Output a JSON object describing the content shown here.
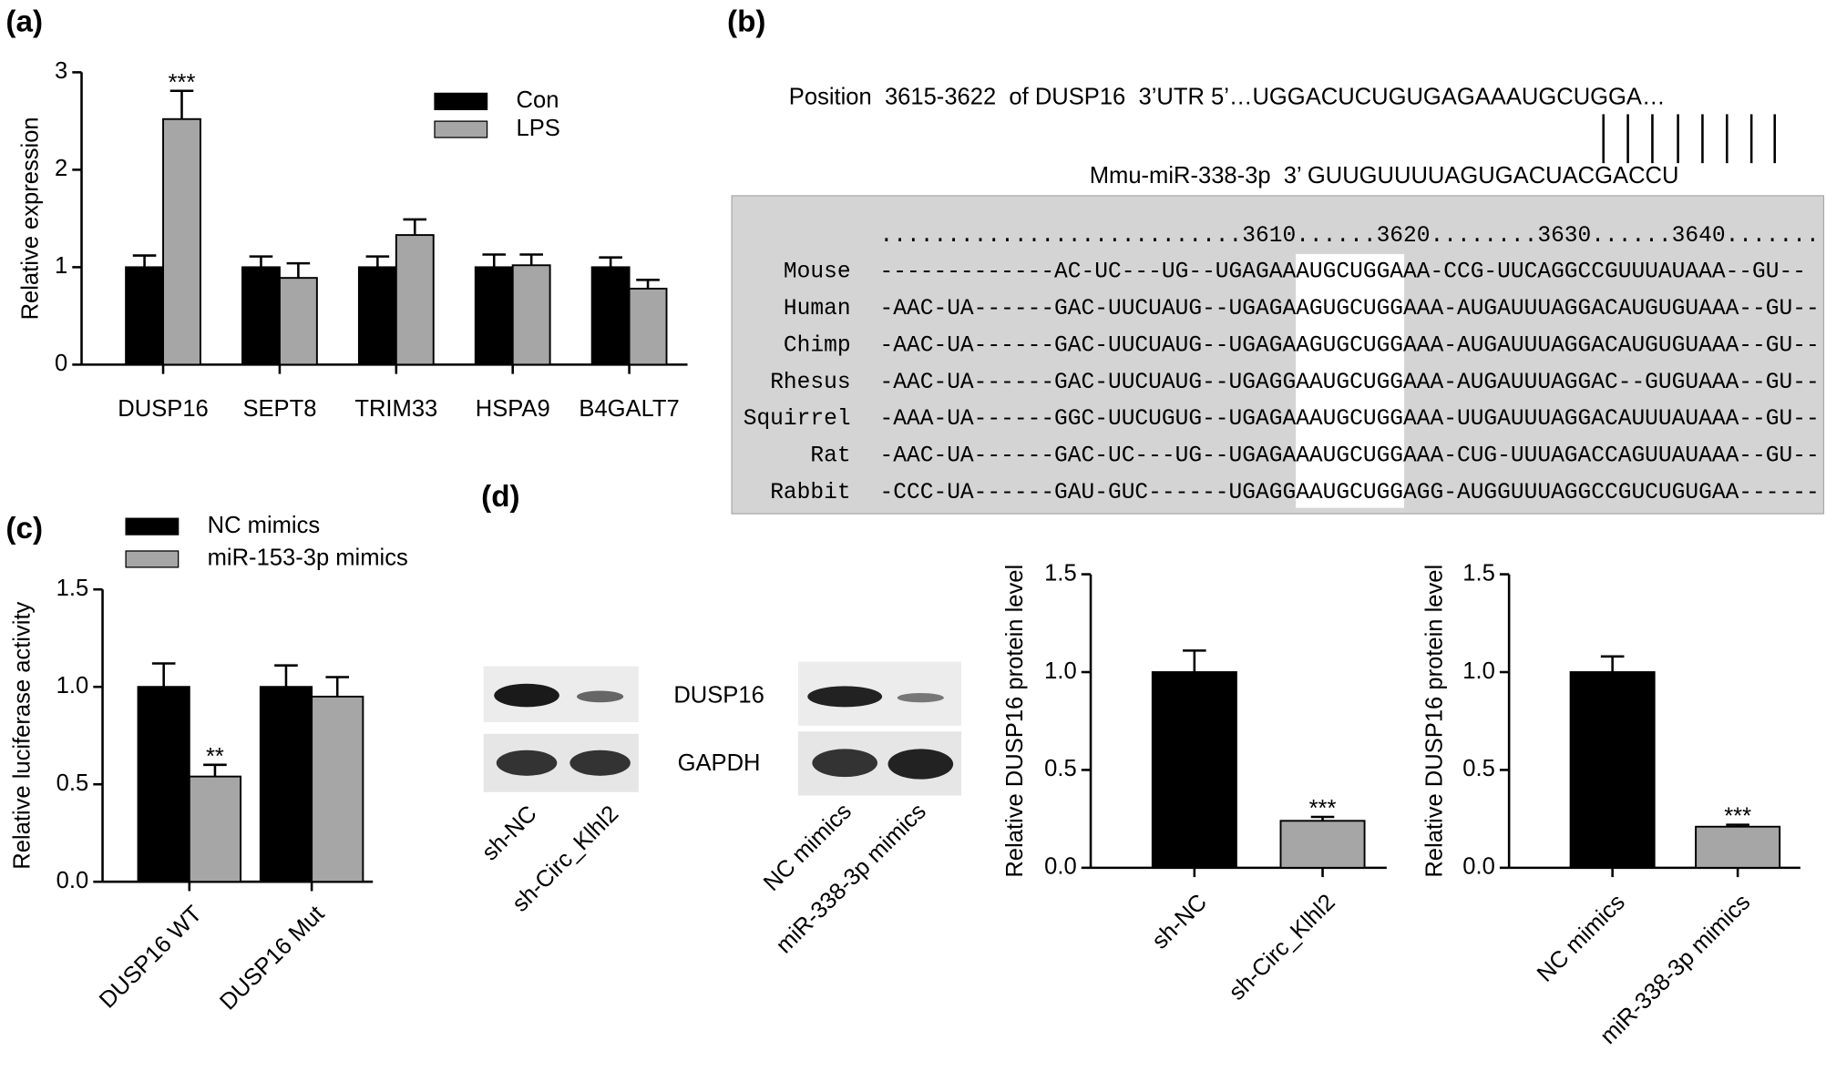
{
  "panel_labels": [
    "(a)",
    "(b)",
    "(c)",
    "(d)"
  ],
  "chart_data": [
    {
      "type": "bar",
      "y_label": "Relative expression",
      "categories": [
        "DUSP16",
        "SEPT8",
        "TRIM33",
        "HSPA9",
        "B4GALT7"
      ],
      "series": [
        {
          "name": "Con",
          "color": "#000000",
          "values": [
            1,
            1,
            1,
            1,
            1
          ],
          "errors": [
            0.12,
            0.11,
            0.11,
            0.13,
            0.1
          ]
        },
        {
          "name": "LPS",
          "color": "#a6a6a6",
          "values": [
            2.52,
            0.89,
            1.33,
            1.02,
            0.78
          ],
          "errors": [
            0.29,
            0.15,
            0.16,
            0.11,
            0.09
          ]
        }
      ],
      "ylim": [
        0,
        3
      ],
      "yticks": [
        0,
        1,
        2,
        3
      ],
      "annotation": "***",
      "legend": "top-right"
    },
    {
      "type": "bar",
      "y_label": "Relative luciferase activity",
      "categories": [
        "DUSP16 WT",
        "DUSP16 Mut"
      ],
      "series": [
        {
          "name": "NC mimics",
          "color": "#000000",
          "values": [
            1.0,
            1.0
          ],
          "errors": [
            0.12,
            0.11
          ]
        },
        {
          "name": "miR-153-3p mimics",
          "color": "#a6a6a6",
          "values": [
            0.54,
            0.95
          ],
          "errors": [
            0.06,
            0.1
          ]
        }
      ],
      "ylim": [
        0,
        1.5
      ],
      "yticks": [
        {
          "value": 0,
          "label": "0.0"
        },
        0.5,
        {
          "value": 1,
          "label": "1.0"
        },
        1.5
      ],
      "annotation": "**",
      "legend": "top"
    },
    {
      "type": "bar",
      "y_label": "Relative DUSP16 protein level",
      "categories": [
        "sh-NC",
        "sh-Circ_Klhl2"
      ],
      "values": [
        1.0,
        0.24
      ],
      "errors": [
        0.11,
        0.02
      ],
      "colors": [
        "#000000",
        "#a6a6a6"
      ],
      "ylim": [
        0,
        1.5
      ],
      "yticks": [
        {
          "value": 0,
          "label": "0.0"
        },
        0.5,
        {
          "value": 1,
          "label": "1.0"
        },
        1.5
      ],
      "annotation": "***"
    },
    {
      "type": "bar",
      "y_label": "Relative DUSP16 protein level",
      "categories": [
        "NC mimics",
        "miR-338-3p mimics"
      ],
      "values": [
        1.0,
        0.21
      ],
      "errors": [
        0.08,
        0.01
      ],
      "colors": [
        "#000000",
        "#a6a6a6"
      ],
      "ylim": [
        0,
        1.5
      ],
      "yticks": [
        {
          "value": 0,
          "label": "0.0"
        },
        0.5,
        {
          "value": 1,
          "label": "1.0"
        },
        1.5
      ],
      "annotation": "***"
    }
  ],
  "alignment": {
    "target": "Position  3615-3622  of DUSP16  3’UTR 5’…UGGACUCUGUGAGAAAUGCUGGA…",
    "mirna": "Mmu-miR-338-3p  3’ GUUGUUUUAGUGACUACGACCU",
    "ruler": "...........................3610......3620........3630......3640.......",
    "rows": [
      {
        "species": "Mouse",
        "label_color": "#1e8a1e",
        "color": "#8b1a8b",
        "sequence": "-------------AC-UC---UG--UGAGAAAUGCUGGAAA-CCG-UUCAGGCCGUUUAUAAA--GU--"
      },
      {
        "species": "Human",
        "label_color": "#1a1ad0",
        "color": "#000000",
        "sequence": "-AAC-UA------GAC-UUCUAUG--UGAGAAGUGCUGGAAA-AUGAUUUAGGACAUGUGUAAA--GU--"
      },
      {
        "species": "Chimp",
        "label_color": "#1a1ad0",
        "color": "#1a1ad0",
        "sequence": "-AAC-UA------GAC-UUCUAUG--UGAGAAGUGCUGGAAA-AUGAUUUAGGACAUGUGUAAA--GU--"
      },
      {
        "species": "Rhesus",
        "label_color": "#1a1ad0",
        "color": "#7a6f9e",
        "sequence": "-AAC-UA------GAC-UUCUAUG--UGAGGAAUGCUGGAAA-AUGAUUUAGGAC--GUGUAAA--GU--"
      },
      {
        "species": "Squirrel",
        "label_color": "#1e8a1e",
        "color": "#1a1ad0",
        "sequence": "-AAA-UA------GGC-UUCUGUG--UGAGAAAUGCUGGAAA-UUGAUUUAGGACAUUUAUAAA--GU--"
      },
      {
        "species": "Rat",
        "label_color": "#1e8a1e",
        "color": "#000000",
        "sequence": "-AAC-UA------GAC-UC---UG--UGAGAAAUGCUGGAAA-CUG-UUUAGACCAGUUAUAAA--GU--"
      },
      {
        "species": "Rabbit",
        "label_color": "#1e8a1e",
        "color": "#1a1ad0",
        "sequence": "-CCC-UA------GAU-GUC------UGAGGAAUGCUGGAGG-AUGGUUUAGGCCGUCUGUGAA------"
      }
    ]
  },
  "blot": {
    "proteins": [
      "DUSP16",
      "GAPDH"
    ],
    "lanes_left": [
      "sh-NC",
      "sh-Circ_Klhl2"
    ],
    "lanes_right": [
      "NC mimics",
      "miR-338-3p mimics"
    ]
  }
}
